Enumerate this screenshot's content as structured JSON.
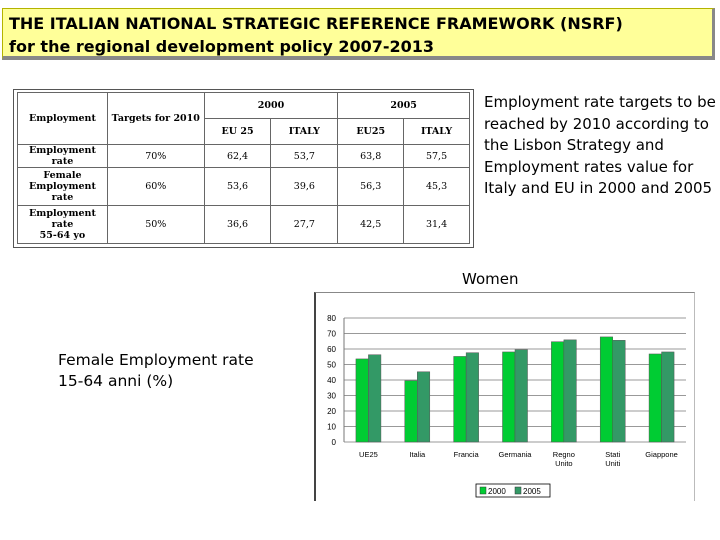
{
  "title": {
    "line1": "THE ITALIAN NATIONAL STRATEGIC REFERENCE FRAMEWORK (NSRF)",
    "line2": "for the regional development policy 2007-2013"
  },
  "table": {
    "h_employment": "Employment",
    "h_targets": "Targets for 2010",
    "h_2000": "2000",
    "h_2005": "2005",
    "h_eu25": "EU 25",
    "h_italy_a": "ITALY",
    "h_eu25b": "EU25",
    "h_italy_b": "ITALY",
    "rows": [
      {
        "label": "Employment rate",
        "target": "70%",
        "v": [
          "62,4",
          "53,7",
          "63,8",
          "57,5"
        ]
      },
      {
        "label_l1": "Female",
        "label_l2": "Employment rate",
        "target": "60%",
        "v": [
          "53,6",
          "39,6",
          "56,3",
          "45,3"
        ]
      },
      {
        "label_l1": "Employment rate",
        "label_l2": "55-64 yo",
        "target": "50%",
        "v": [
          "36,6",
          "27,7",
          "42,5",
          "31,4"
        ]
      }
    ]
  },
  "side_text": "Employment rate targets to be reached by 2010 according to the Lisbon Strategy and Employment rates value for Italy and EU in 2000 and 2005",
  "women_label": "Women",
  "female_label_l1": "Female Employment rate",
  "female_label_l2": "15-64 anni (%)",
  "colors": {
    "title_bg": "#ffff99",
    "bar_2000": "#00cc33",
    "bar_2005": "#339966"
  },
  "chart_data": {
    "type": "bar",
    "categories": [
      "UE25",
      "Italia",
      "Francia",
      "Germania",
      "Regno Unito",
      "Stati Uniti",
      "Giappone"
    ],
    "series": [
      {
        "name": "2000",
        "values": [
          53.6,
          39.6,
          55.2,
          58.1,
          64.7,
          67.8,
          56.8
        ]
      },
      {
        "name": "2005",
        "values": [
          56.3,
          45.3,
          57.6,
          59.6,
          65.9,
          65.6,
          58.1
        ]
      }
    ],
    "yticks": [
      0,
      10,
      20,
      30,
      40,
      50,
      60,
      70,
      80
    ],
    "ylim": [
      0,
      80
    ],
    "grid": true,
    "legend": "bottom"
  }
}
